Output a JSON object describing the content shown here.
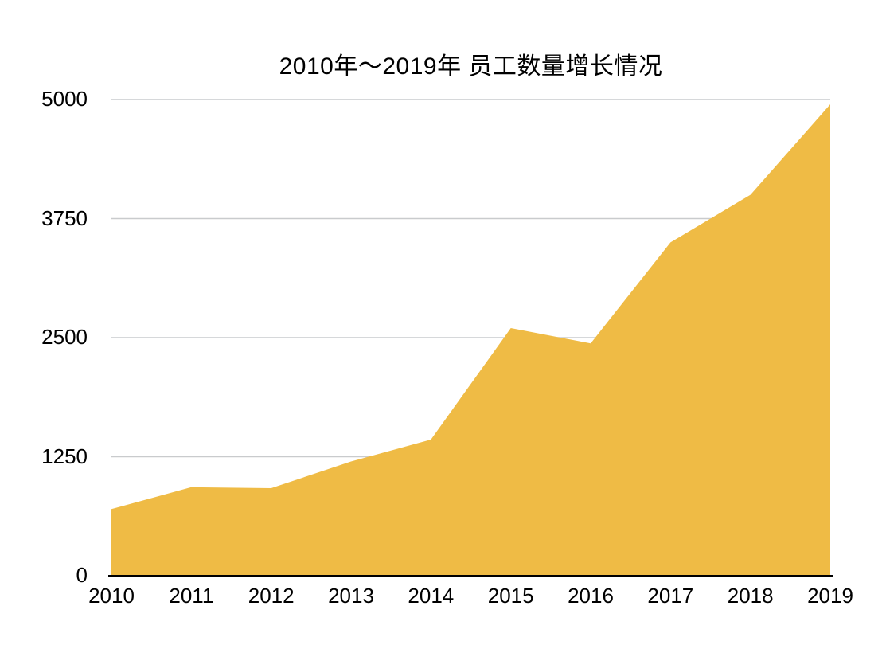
{
  "chart_data": {
    "type": "area",
    "title": "2010年～2019年 员工数量增长情况",
    "categories": [
      "2010",
      "2011",
      "2012",
      "2013",
      "2014",
      "2015",
      "2016",
      "2017",
      "2018",
      "2019"
    ],
    "series": [
      {
        "values": [
          700,
          930,
          920,
          1200,
          1430,
          2600,
          2440,
          3500,
          4000,
          4950
        ]
      }
    ],
    "y_ticks": [
      0,
      1250,
      2500,
      3750,
      5000
    ],
    "ylim": [
      0,
      5000
    ],
    "xlabel": "",
    "ylabel": "",
    "grid": true,
    "legend": false,
    "colors": {
      "area": "#EFBB45",
      "gridline": "#C9CBCD",
      "axis": "#000000",
      "text": "#000000"
    }
  }
}
